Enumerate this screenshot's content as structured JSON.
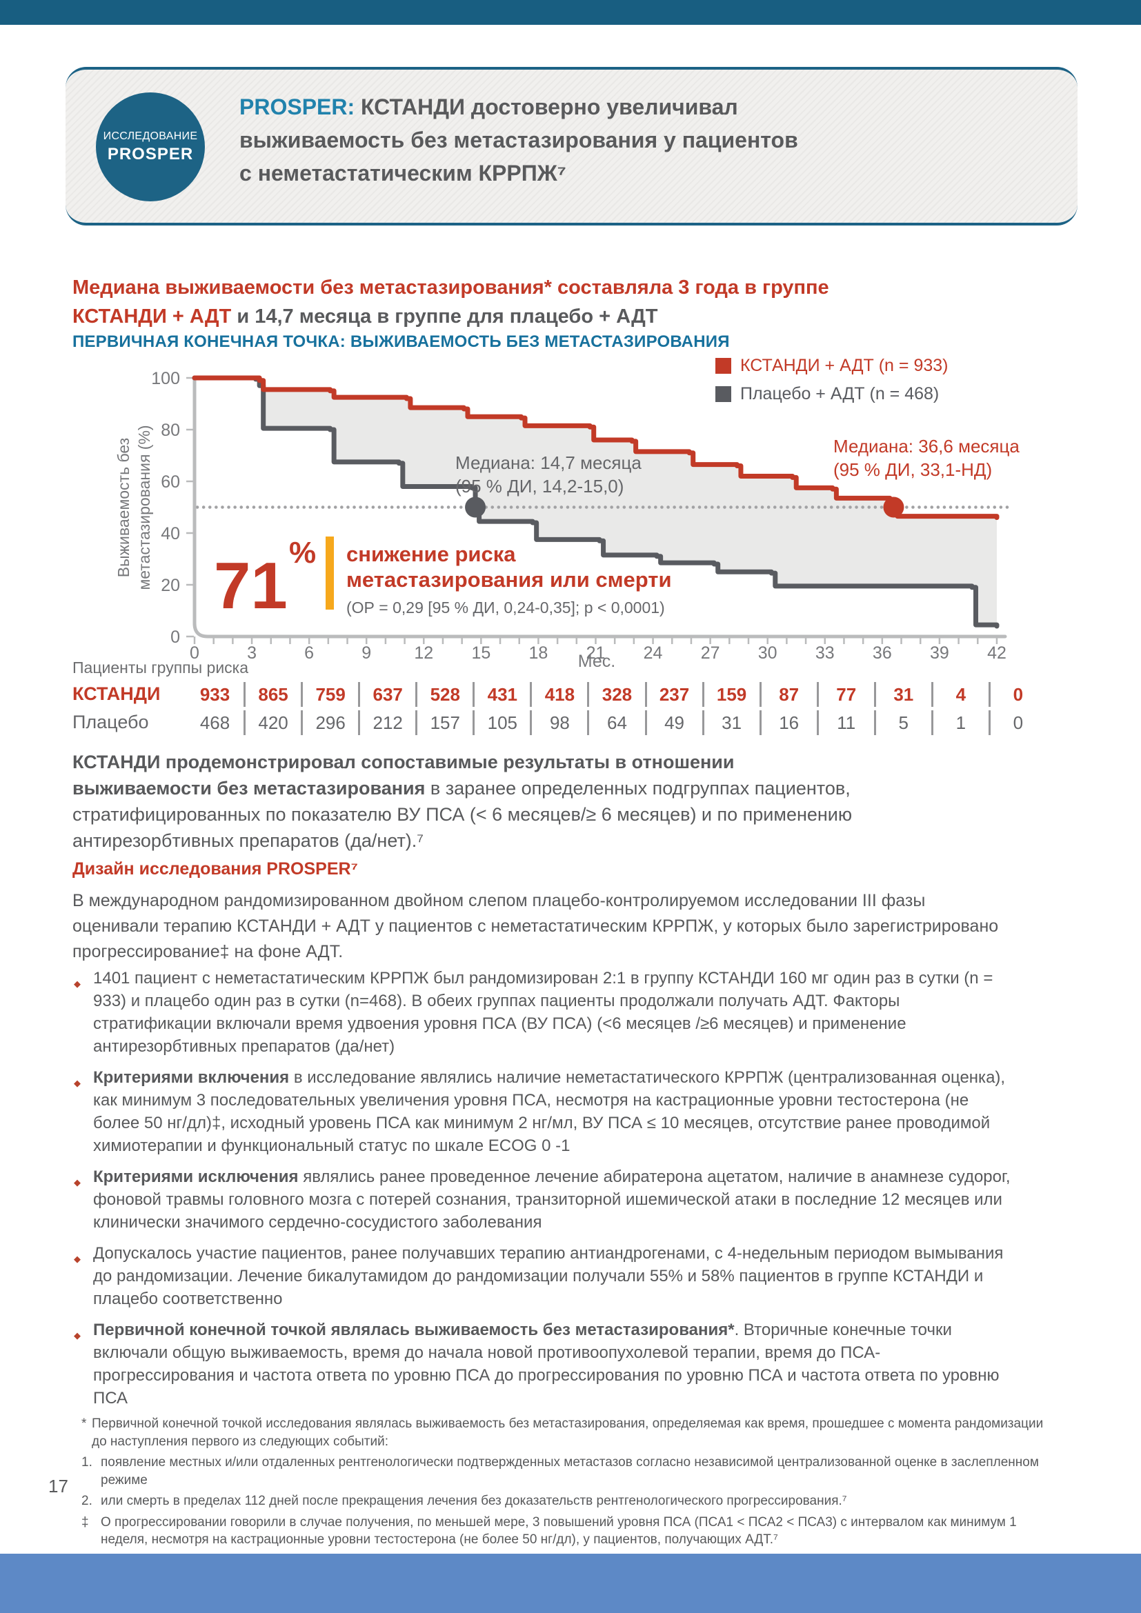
{
  "colors": {
    "accent_red": "#c23a27",
    "teal_heading": "#17719d",
    "prosper_blue": "#2182ac",
    "badge_blue": "#1d6385",
    "bar_top": "#185e81",
    "bar_bottom": "#5d89c6",
    "orange_accent": "#f6a81c",
    "text_gray": "#58595b",
    "curve_gray": "#595b60",
    "band_gray": "#e9e9e8"
  },
  "page": {
    "number": "17"
  },
  "header": {
    "badge_line1": "ИССЛЕДОВАНИЕ",
    "badge_line2": "PROSPER",
    "title_line1_highlight": "PROSPER:",
    "title_line1_rest": " КСТАНДИ достоверно увеличивал",
    "title_line2": "выживаемость без метастазирования у пациентов",
    "title_line3": "с неметастатическим КРРПЖ⁷"
  },
  "headline": {
    "line1": "Медиана выживаемости без метастазирования* составляла 3 года в группе",
    "line2_red": "КСТАНДИ + АДТ",
    "line2_gray": " и 14,7 месяца в группе для плацебо + АДТ",
    "subhead": "ПЕРВИЧНАЯ КОНЕЧНАЯ ТОЧКА: ВЫЖИВАЕМОСТЬ БЕЗ МЕТАСТАЗИРОВАНИЯ"
  },
  "chart": {
    "legend": [
      {
        "label": "КСТАНДИ + АДТ (n = 933)",
        "color": "#c23a27"
      },
      {
        "label": "Плацебо + АДТ (n = 468)",
        "color": "#595b60"
      }
    ],
    "ylabel_line1": "Выживаемость без",
    "ylabel_line2": "метастазирования (%)",
    "xlabel": "Мес.",
    "median_placebo": {
      "line1": "Медиана: 14,7 месяца",
      "line2": "(95 % ДИ, 14,2-15,0)"
    },
    "median_xtandi": {
      "line1": "Медиана: 36,6 месяца",
      "line2": "(95 % ДИ, 33,1-НД)"
    },
    "risk_reduction": {
      "value": "71",
      "percent": "%",
      "label_line1": "снижение риска",
      "label_line2": "метастазирования или смерти",
      "stat": "(ОР = 0,29 [95 % ДИ, 0,24-0,35]; p < 0,0001)"
    },
    "risk_title": "Пациенты группы риска"
  },
  "chart_data": {
    "type": "line",
    "subtype": "kaplan-meier-step",
    "title": "ПЕРВИЧНАЯ КОНЕЧНАЯ ТОЧКА: ВЫЖИВАЕМОСТЬ БЕЗ МЕТАСТАЗИРОВАНИЯ",
    "xlabel": "Мес.",
    "ylabel": "Выживаемость без метастазирования (%)",
    "xlim": [
      0,
      42
    ],
    "ylim": [
      0,
      100
    ],
    "xticks": [
      0,
      3,
      6,
      9,
      12,
      15,
      18,
      21,
      24,
      27,
      30,
      33,
      36,
      39,
      42
    ],
    "yticks": [
      0,
      20,
      40,
      60,
      80,
      100
    ],
    "reference_line_y": 50,
    "legend_position": "top-right",
    "series": [
      {
        "name": "КСТАНДИ + АДТ (n = 933)",
        "color": "#c23a27",
        "median_months": 36.6,
        "ci_95": "33,1-НД",
        "points": [
          [
            0,
            100
          ],
          [
            3.4,
            99
          ],
          [
            3.6,
            95.5
          ],
          [
            7.1,
            95
          ],
          [
            7.3,
            92.5
          ],
          [
            11.1,
            92
          ],
          [
            11.3,
            88.5
          ],
          [
            14.1,
            88
          ],
          [
            14.3,
            85
          ],
          [
            17.1,
            84.5
          ],
          [
            17.3,
            81.5
          ],
          [
            20.7,
            81
          ],
          [
            20.9,
            76
          ],
          [
            22.9,
            75.5
          ],
          [
            23.1,
            71.5
          ],
          [
            25.9,
            71
          ],
          [
            26.1,
            66.5
          ],
          [
            28.4,
            66
          ],
          [
            28.6,
            62
          ],
          [
            31.3,
            61.5
          ],
          [
            31.5,
            57.5
          ],
          [
            33.4,
            57
          ],
          [
            33.6,
            53.5
          ],
          [
            36.4,
            53
          ],
          [
            36.6,
            50
          ],
          [
            36.8,
            46.5
          ],
          [
            42,
            46
          ]
        ]
      },
      {
        "name": "Плацебо + АДТ (n = 468)",
        "color": "#595b60",
        "median_months": 14.7,
        "ci_95": "14,2-15,0",
        "points": [
          [
            0,
            100
          ],
          [
            3.2,
            99.5
          ],
          [
            3.4,
            97
          ],
          [
            3.6,
            80.5
          ],
          [
            7.1,
            80
          ],
          [
            7.3,
            67.5
          ],
          [
            10.7,
            67
          ],
          [
            10.9,
            58
          ],
          [
            14.5,
            57.5
          ],
          [
            14.7,
            50
          ],
          [
            14.9,
            44.5
          ],
          [
            17.7,
            44
          ],
          [
            17.9,
            37.5
          ],
          [
            21.2,
            37
          ],
          [
            21.4,
            31.5
          ],
          [
            24.2,
            31
          ],
          [
            24.4,
            28.5
          ],
          [
            27.2,
            28
          ],
          [
            27.4,
            25
          ],
          [
            30.2,
            24.5
          ],
          [
            30.4,
            19.5
          ],
          [
            40.7,
            19
          ],
          [
            40.9,
            4.5
          ],
          [
            42,
            4
          ]
        ]
      }
    ],
    "median_markers": [
      {
        "x": 14.7,
        "y": 50,
        "color": "#595b60"
      },
      {
        "x": 36.6,
        "y": 50,
        "color": "#c23a27"
      }
    ],
    "hazard_ratio": "ОР = 0,29 [95 % ДИ, 0,24-0,35]; p < 0,0001",
    "risk_reduction_percent": 71,
    "risk_table": {
      "title": "Пациенты группы риска",
      "months": [
        0,
        3,
        6,
        9,
        12,
        15,
        18,
        21,
        24,
        27,
        30,
        33,
        36,
        39,
        42
      ],
      "rows": [
        {
          "label": "КСТАНДИ",
          "values": [
            933,
            865,
            759,
            637,
            528,
            431,
            418,
            328,
            237,
            159,
            87,
            77,
            31,
            4,
            0
          ]
        },
        {
          "label": "Плацебо",
          "values": [
            468,
            420,
            296,
            212,
            157,
            105,
            98,
            64,
            49,
            31,
            16,
            11,
            5,
            1,
            0
          ]
        }
      ]
    }
  },
  "summary": {
    "line1_bold": "КСТАНДИ продемонстрировал сопоставимые результаты в отношении",
    "line2_bold": "выживаемости без метастазирования",
    "line2_rest": " в заранее определенных подгруппах пациентов,",
    "line3": "стратифицированных по показателю ВУ ПСА (< 6 месяцев/≥ 6 месяцев) и по применению",
    "line4": "антирезорбтивных препаратов (да/нет).⁷"
  },
  "design": {
    "heading": "Дизайн исследования PROSPER⁷",
    "intro_line1": "В международном рандомизированном двойном слепом плацебо-контролируемом исследовании III фазы",
    "intro_line2": "оценивали терапию КСТАНДИ + АДТ у пациентов с неметастатическим КРРПЖ, у которых было зарегистрировано",
    "intro_line3": "прогрессирование‡ на фоне АДТ.",
    "bullets": [
      {
        "bold": "",
        "text": "1401 пациент с неметастатическим КРРПЖ был рандомизирован 2:1 в группу КСТАНДИ 160 мг один раз в сутки (n = 933) и плацебо один раз в сутки (n=468). В обеих группах пациенты продолжали получать АДТ. Факторы стратификации включали время удвоения уровня ПСА (ВУ ПСА) (<6 месяцев /≥6 месяцев) и применение антирезорбтивных препаратов (да/нет)"
      },
      {
        "bold": "Критериями включения",
        "text": " в исследование являлись наличие неметастатического КРРПЖ (централизованная оценка), как минимум 3 последовательных увеличения уровня ПСА, несмотря на кастрационные уровни тестостерона (не более 50 нг/дл)‡, исходный уровень ПСА как минимум 2 нг/мл, ВУ ПСА ≤ 10 месяцев, отсутствие ранее проводимой химиотерапии и функциональный статус по шкале ECOG 0 -1"
      },
      {
        "bold": "Критериями исключения",
        "text": " являлись ранее проведенное лечение абиратерона ацетатом, наличие в анамнезе судорог, фоновой травмы головного мозга с потерей сознания, транзиторной ишемической атаки в последние 12 месяцев или клинически значимого сердечно-сосудистого заболевания"
      },
      {
        "bold": "",
        "text": "Допускалось участие пациентов, ранее получавших терапию антиандрогенами, с 4-недельным периодом вымывания до рандомизации. Лечение бикалутамидом до рандомизации получали 55% и 58% пациентов в группе КСТАНДИ и плацебо соответственно"
      },
      {
        "bold": "Первичной конечной точкой являлась выживаемость без метастазирования*",
        "text": ". Вторичные конечные точки включали общую выживаемость, время до начала новой противоопухолевой терапии, время до ПСА-прогрессирования и частота ответа по уровню ПСА до прогрессирования по уровню ПСА и частота ответа по уровню ПСА"
      }
    ]
  },
  "footnotes": {
    "items": [
      {
        "marker": "*",
        "text": "Первичной конечной точкой исследования являлась выживаемость без метастазирования, определяемая как время, прошедшее с момента рандомизации до наступления первого из следующих событий:"
      },
      {
        "marker": "1.",
        "text": "появление местных и/или отдаленных рентгенологически подтвержденных метастазов согласно независимой централизованной оценке в заслепленном режиме"
      },
      {
        "marker": "2.",
        "text": "или смерть в пределах 112 дней после прекращения лечения без доказательств рентгенологического прогрессирования.⁷"
      },
      {
        "marker": "‡",
        "text": "О прогрессировании говорили в случае получения, по меньшей мере, 3 повышений уровня ПСА (ПСА1 < ПСА2 < ПСА3) с интервалом как минимум 1 неделя, несмотря на кастрационные уровни тестостерона (не более 50 нг/дл), у пациентов, получающих АДТ.⁷"
      }
    ]
  }
}
